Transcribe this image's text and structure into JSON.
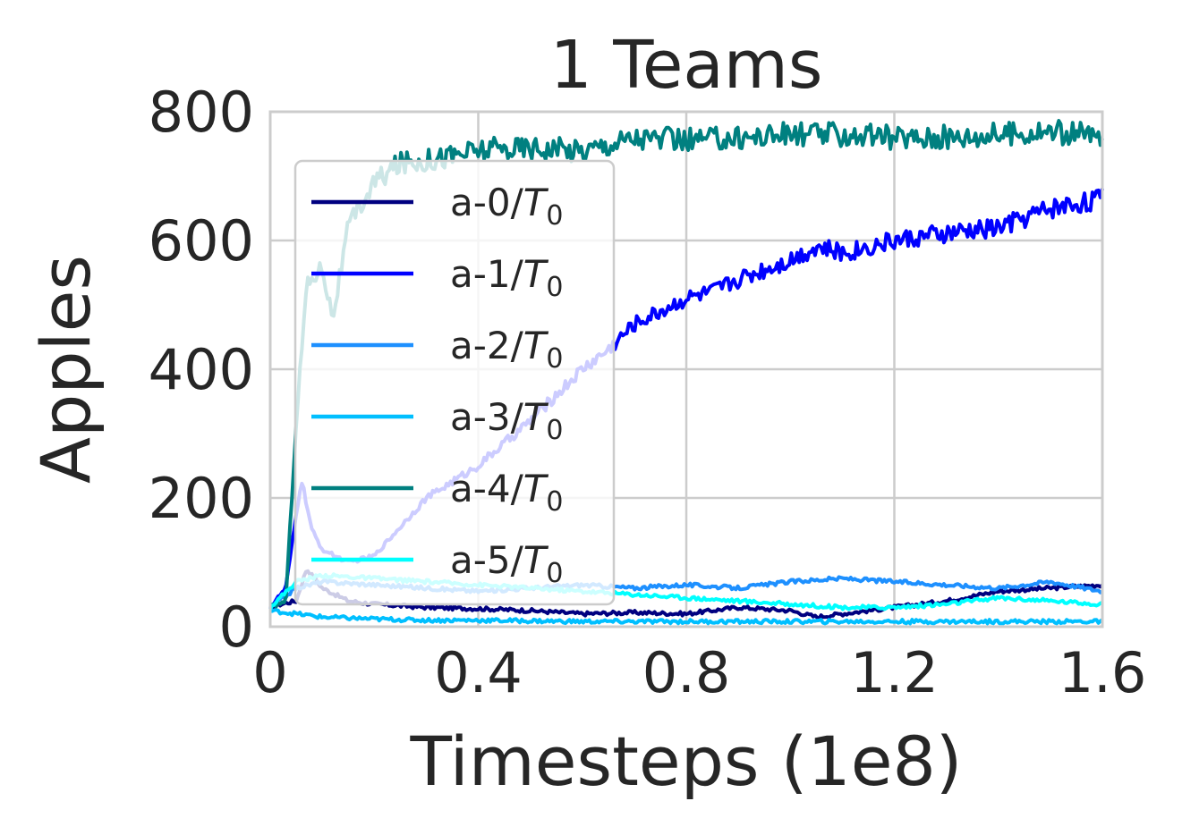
{
  "chart_data": {
    "type": "line",
    "title": "1 Teams",
    "xlabel": "Timesteps (1e8)",
    "ylabel": "Apples",
    "xlim": [
      0,
      1.6
    ],
    "ylim": [
      0,
      800
    ],
    "xticks": [
      "0",
      "0.4",
      "0.8",
      "1.2",
      "1.6"
    ],
    "yticks": [
      "0",
      "200",
      "400",
      "600",
      "800"
    ],
    "xtick_values": [
      0,
      0.4,
      0.8,
      1.2,
      1.6
    ],
    "ytick_values": [
      0,
      200,
      400,
      600,
      800
    ],
    "grid": true,
    "legend_position": "upper-left",
    "series": [
      {
        "name": "a-0/T0",
        "legend_base": "a-0/",
        "legend_T": "T",
        "legend_sub": "0",
        "color": "#000080",
        "x": [
          0,
          0.02,
          0.05,
          0.07,
          0.1,
          0.15,
          0.2,
          0.3,
          0.4,
          0.5,
          0.6,
          0.7,
          0.8,
          0.9,
          1.0,
          1.05,
          1.1,
          1.2,
          1.3,
          1.4,
          1.5,
          1.6
        ],
        "y": [
          30,
          35,
          40,
          90,
          60,
          40,
          35,
          30,
          28,
          25,
          20,
          22,
          20,
          30,
          25,
          15,
          20,
          30,
          40,
          55,
          60,
          65
        ]
      },
      {
        "name": "a-1/T0",
        "legend_base": "a-1/",
        "legend_T": "T",
        "legend_sub": "0",
        "color": "#0000ff",
        "x": [
          0,
          0.03,
          0.06,
          0.08,
          0.1,
          0.15,
          0.2,
          0.3,
          0.4,
          0.5,
          0.6,
          0.65,
          0.7,
          0.75,
          0.8,
          0.85,
          0.9,
          1.0,
          1.05,
          1.1,
          1.2,
          1.3,
          1.4,
          1.5,
          1.6
        ],
        "y": [
          30,
          60,
          230,
          150,
          120,
          100,
          110,
          200,
          250,
          320,
          400,
          430,
          470,
          490,
          510,
          520,
          540,
          570,
          590,
          580,
          600,
          610,
          620,
          650,
          665
        ]
      },
      {
        "name": "a-2/T0",
        "legend_base": "a-2/",
        "legend_T": "T",
        "legend_sub": "0",
        "color": "#1e90ff",
        "x": [
          0,
          0.05,
          0.1,
          0.2,
          0.3,
          0.4,
          0.5,
          0.6,
          0.7,
          0.8,
          0.9,
          1.0,
          1.1,
          1.2,
          1.3,
          1.4,
          1.5,
          1.6
        ],
        "y": [
          30,
          60,
          70,
          65,
          60,
          55,
          60,
          65,
          60,
          65,
          60,
          70,
          75,
          70,
          65,
          60,
          70,
          55
        ]
      },
      {
        "name": "a-3/T0",
        "legend_base": "a-3/",
        "legend_T": "T",
        "legend_sub": "0",
        "color": "#00bfff",
        "x": [
          0,
          0.05,
          0.1,
          0.2,
          0.3,
          0.4,
          0.6,
          0.8,
          1.0,
          1.2,
          1.4,
          1.6
        ],
        "y": [
          25,
          20,
          15,
          12,
          10,
          10,
          8,
          8,
          8,
          8,
          8,
          8
        ]
      },
      {
        "name": "a-4/T0",
        "legend_base": "a-4/",
        "legend_T": "T",
        "legend_sub": "0",
        "color": "#008080",
        "x": [
          0,
          0.03,
          0.05,
          0.07,
          0.1,
          0.12,
          0.15,
          0.2,
          0.25,
          0.3,
          0.4,
          0.5,
          0.6,
          0.7,
          0.8,
          0.9,
          1.0,
          1.1,
          1.2,
          1.3,
          1.4,
          1.5,
          1.6
        ],
        "y": [
          30,
          40,
          320,
          530,
          560,
          480,
          620,
          690,
          720,
          725,
          740,
          745,
          740,
          760,
          755,
          760,
          765,
          765,
          760,
          760,
          765,
          770,
          760
        ]
      },
      {
        "name": "a-5/T0",
        "legend_base": "a-5/",
        "legend_T": "T",
        "legend_sub": "0",
        "color": "#00ffff",
        "x": [
          0,
          0.05,
          0.1,
          0.2,
          0.3,
          0.4,
          0.5,
          0.6,
          0.7,
          0.8,
          0.9,
          1.0,
          1.1,
          1.2,
          1.3,
          1.4,
          1.5,
          1.6
        ],
        "y": [
          30,
          70,
          80,
          75,
          70,
          65,
          60,
          55,
          50,
          45,
          40,
          35,
          30,
          30,
          35,
          45,
          40,
          35
        ]
      }
    ]
  }
}
